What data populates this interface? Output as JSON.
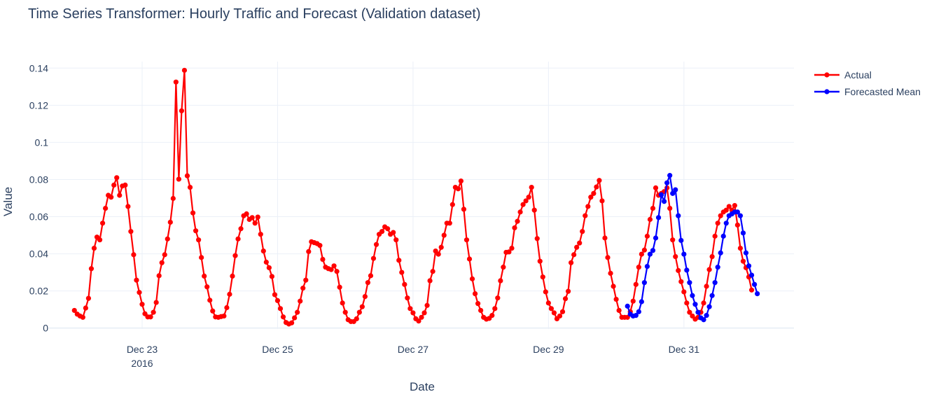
{
  "chart_data": {
    "type": "line",
    "title": "Time Series Transformer: Hourly Traffic and Forecast (Validation dataset)",
    "xlabel": "Date",
    "ylabel": "Value",
    "x_start": "2016-12-22 00:00",
    "x_step_hours": 1,
    "xlim": [
      "2016-12-21 15:00",
      "2017-01-01 15:00"
    ],
    "ylim": [
      -0.0005,
      0.1435
    ],
    "x_ticks": [
      {
        "date": "2016-12-23",
        "label": "Dec 23",
        "sub": "2016"
      },
      {
        "date": "2016-12-25",
        "label": "Dec 25",
        "sub": ""
      },
      {
        "date": "2016-12-27",
        "label": "Dec 27",
        "sub": ""
      },
      {
        "date": "2016-12-29",
        "label": "Dec 29",
        "sub": ""
      },
      {
        "date": "2016-12-31",
        "label": "Dec 31",
        "sub": ""
      }
    ],
    "y_ticks": [
      {
        "value": 0,
        "label": "0"
      },
      {
        "value": 0.02,
        "label": "0.02"
      },
      {
        "value": 0.04,
        "label": "0.04"
      },
      {
        "value": 0.06,
        "label": "0.06"
      },
      {
        "value": 0.08,
        "label": "0.08"
      },
      {
        "value": 0.1,
        "label": "0.1"
      },
      {
        "value": 0.12,
        "label": "0.12"
      },
      {
        "value": 0.14,
        "label": "0.14"
      }
    ],
    "grid": true,
    "legend_position": "top-right",
    "series": [
      {
        "name": "Actual",
        "color": "#ff0000",
        "start": "2016-12-22 00:00",
        "values": [
          0.0095,
          0.0075,
          0.0065,
          0.0058,
          0.0108,
          0.016,
          0.032,
          0.043,
          0.049,
          0.0475,
          0.0565,
          0.0645,
          0.0715,
          0.0705,
          0.077,
          0.081,
          0.0715,
          0.0765,
          0.077,
          0.0655,
          0.052,
          0.0395,
          0.0258,
          0.0192,
          0.0128,
          0.0077,
          0.006,
          0.006,
          0.0085,
          0.0138,
          0.0282,
          0.0352,
          0.0395,
          0.048,
          0.057,
          0.0698,
          0.1325,
          0.0802,
          0.117,
          0.1388,
          0.082,
          0.0758,
          0.062,
          0.0524,
          0.0475,
          0.038,
          0.028,
          0.0222,
          0.015,
          0.0092,
          0.006,
          0.0058,
          0.0062,
          0.0065,
          0.011,
          0.0182,
          0.028,
          0.039,
          0.048,
          0.0535,
          0.0605,
          0.0615,
          0.0585,
          0.0595,
          0.0565,
          0.0598,
          0.0505,
          0.0415,
          0.0355,
          0.0325,
          0.0278,
          0.018,
          0.0148,
          0.0105,
          0.006,
          0.003,
          0.0022,
          0.0028,
          0.0055,
          0.0085,
          0.0145,
          0.0215,
          0.0258,
          0.0412,
          0.0465,
          0.046,
          0.0455,
          0.0445,
          0.037,
          0.0328,
          0.032,
          0.0315,
          0.0335,
          0.0305,
          0.022,
          0.0135,
          0.0085,
          0.0045,
          0.0035,
          0.0035,
          0.005,
          0.0085,
          0.0115,
          0.017,
          0.0245,
          0.0282,
          0.0375,
          0.045,
          0.0505,
          0.052,
          0.0545,
          0.0535,
          0.0505,
          0.0515,
          0.0475,
          0.0365,
          0.03,
          0.0235,
          0.0162,
          0.0105,
          0.0082,
          0.005,
          0.0038,
          0.0058,
          0.0082,
          0.0122,
          0.0255,
          0.0305,
          0.0415,
          0.0398,
          0.0435,
          0.05,
          0.0565,
          0.0565,
          0.0665,
          0.0758,
          0.075,
          0.0792,
          0.064,
          0.0475,
          0.0372,
          0.0265,
          0.0185,
          0.0132,
          0.0095,
          0.0058,
          0.0048,
          0.0052,
          0.0068,
          0.0105,
          0.0162,
          0.0255,
          0.0328,
          0.0408,
          0.041,
          0.043,
          0.054,
          0.0575,
          0.0625,
          0.0665,
          0.0685,
          0.0705,
          0.0758,
          0.0635,
          0.0482,
          0.036,
          0.0275,
          0.0195,
          0.0135,
          0.0105,
          0.0082,
          0.005,
          0.0065,
          0.0088,
          0.0158,
          0.0198,
          0.0352,
          0.0395,
          0.0435,
          0.0458,
          0.052,
          0.0605,
          0.0655,
          0.0705,
          0.0725,
          0.076,
          0.0795,
          0.0685,
          0.0485,
          0.038,
          0.0295,
          0.0225,
          0.0155,
          0.0095,
          0.0058,
          0.0058,
          0.0058,
          0.0088,
          0.0145,
          0.0235,
          0.0328,
          0.0398,
          0.042,
          0.0495,
          0.0585,
          0.0645,
          0.0755,
          0.0715,
          0.0725,
          0.0735,
          0.0755,
          0.0645,
          0.0475,
          0.0385,
          0.031,
          0.025,
          0.0195,
          0.0135,
          0.0085,
          0.0065,
          0.0048,
          0.0058,
          0.0085,
          0.0135,
          0.0225,
          0.0315,
          0.0385,
          0.0495,
          0.0565,
          0.0605,
          0.0625,
          0.0635,
          0.0655,
          0.0635,
          0.066,
          0.0555,
          0.043,
          0.036,
          0.0325,
          0.0275,
          0.0205
        ]
      },
      {
        "name": "Forecasted Mean",
        "color": "#0000ff",
        "start": "2016-12-30 04:00",
        "values": [
          0.0118,
          0.0075,
          0.0065,
          0.0068,
          0.0088,
          0.0142,
          0.0245,
          0.0332,
          0.0398,
          0.0418,
          0.0485,
          0.0595,
          0.0718,
          0.0682,
          0.0782,
          0.0822,
          0.0725,
          0.0745,
          0.0605,
          0.0472,
          0.0398,
          0.0312,
          0.0245,
          0.0175,
          0.0128,
          0.0085,
          0.0055,
          0.0045,
          0.0068,
          0.0115,
          0.0175,
          0.0245,
          0.0328,
          0.0405,
          0.0495,
          0.0565,
          0.0605,
          0.0615,
          0.0625,
          0.0625,
          0.0605,
          0.0512,
          0.0405,
          0.0335,
          0.0285,
          0.0235,
          0.0185
        ]
      }
    ]
  }
}
